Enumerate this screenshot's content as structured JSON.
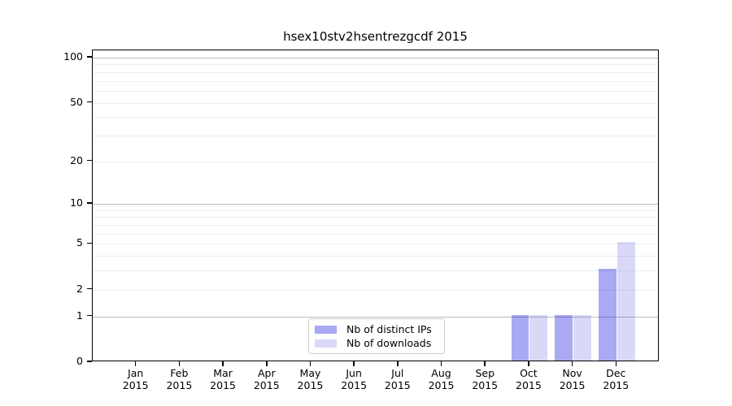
{
  "chart_data": {
    "type": "bar",
    "title": "hsex10stv2hsentrezgcdf 2015",
    "categories": [
      "Jan",
      "Feb",
      "Mar",
      "Apr",
      "May",
      "Jun",
      "Jul",
      "Aug",
      "Sep",
      "Oct",
      "Nov",
      "Dec"
    ],
    "category_year": "2015",
    "series": [
      {
        "name": "Nb of distinct IPs",
        "color": "#a9a9f4",
        "values": [
          0,
          0,
          0,
          0,
          0,
          0,
          0,
          0,
          0,
          1,
          1,
          3
        ]
      },
      {
        "name": "Nb of downloads",
        "color": "#d9d9f7",
        "values": [
          0,
          0,
          0,
          0,
          0,
          0,
          0,
          0,
          0,
          1,
          1,
          5
        ]
      }
    ],
    "xlabel": "",
    "ylabel": "",
    "yscale": "log10(1+value)",
    "ylim": [
      0,
      110
    ],
    "yticks": [
      0,
      1,
      2,
      5,
      10,
      20,
      50,
      100
    ],
    "minor_gridlines": [
      2,
      3,
      4,
      5,
      6,
      7,
      8,
      9,
      20,
      30,
      40,
      50,
      60,
      70,
      80,
      90
    ],
    "major_gridlines": [
      1,
      10,
      100
    ],
    "grid": true,
    "legend_position": "inside-bottom-center",
    "colors": {
      "axis": "#000000",
      "text": "#000000",
      "major_grid": "#bfbfbf",
      "minor_grid": "#ededed",
      "background": "#ffffff"
    }
  }
}
